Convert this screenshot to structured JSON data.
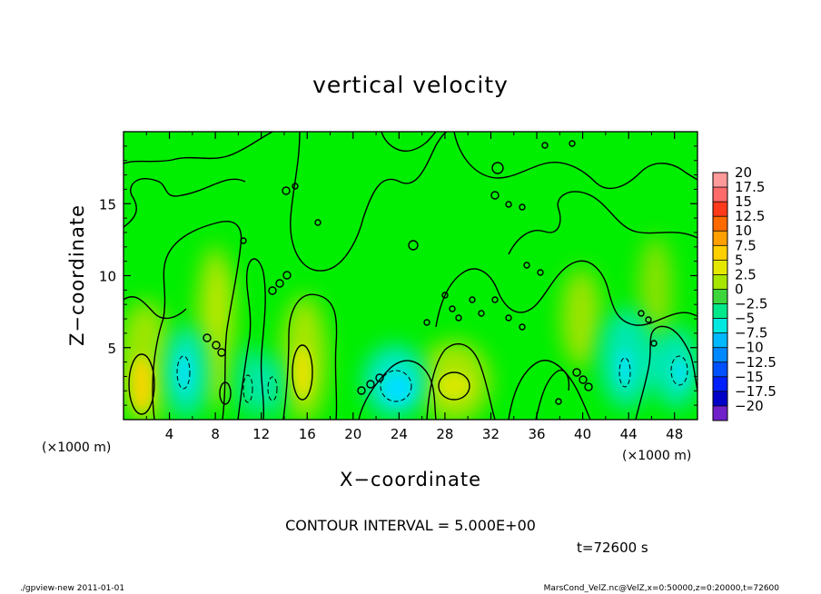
{
  "chart_data": {
    "type": "heatmap",
    "title": "vertical velocity",
    "xlabel": "X−coordinate",
    "ylabel": "Z−coordinate",
    "x_unit_label": "(×1000 m)",
    "y_unit_label": "(×1000 m)",
    "xlim": [
      0,
      50
    ],
    "ylim": [
      0,
      20
    ],
    "x_ticks": [
      4,
      8,
      12,
      16,
      20,
      24,
      28,
      32,
      36,
      40,
      44,
      48
    ],
    "x_tick_labels": [
      "4",
      "8",
      "12",
      "16",
      "20",
      "24",
      "28",
      "32",
      "36",
      "40",
      "44",
      "48"
    ],
    "y_ticks": [
      5,
      10,
      15
    ],
    "y_tick_labels": [
      "5",
      "10",
      "15"
    ],
    "color_range": [
      -20,
      20
    ],
    "colorbar": {
      "labels": [
        "20",
        "17.5",
        "15",
        "12.5",
        "10",
        "7.5",
        "5",
        "2.5",
        "0",
        "−2.5",
        "−5",
        "−7.5",
        "−10",
        "−12.5",
        "−15",
        "−17.5",
        "−20"
      ],
      "colors": [
        "#ff9a9a",
        "#ff6a6a",
        "#ff3a1a",
        "#ff6a00",
        "#ffa000",
        "#ffd000",
        "#e4e800",
        "#a6e600",
        "#3cd63c",
        "#00e88a",
        "#00e8e0",
        "#00b8ff",
        "#0088ff",
        "#0050ff",
        "#0020ff",
        "#0000c8",
        "#7020c8"
      ],
      "background_color": "#00ee00"
    },
    "features": [
      {
        "type": "updraft",
        "x": 1.5,
        "z": 2.5,
        "value": 10
      },
      {
        "type": "downdraft",
        "x": 5.2,
        "z": 3.0,
        "value": -5
      },
      {
        "type": "updraft",
        "x": 9.2,
        "z": 2.0,
        "value": 3
      },
      {
        "type": "downdraft",
        "x": 11.2,
        "z": 2.0,
        "value": -4
      },
      {
        "type": "updraft",
        "x": 15.6,
        "z": 3.2,
        "value": 9
      },
      {
        "type": "downdraft",
        "x": 23.6,
        "z": 2.2,
        "value": -7
      },
      {
        "type": "updraft",
        "x": 28.8,
        "z": 2.4,
        "value": 7
      },
      {
        "type": "downdraft",
        "x": 43.5,
        "z": 3.0,
        "value": -6
      },
      {
        "type": "downdraft",
        "x": 47.8,
        "z": 3.0,
        "value": -6
      }
    ]
  },
  "contour_interval_text": "CONTOUR INTERVAL = 5.000E+00",
  "time_text": "t=72600 s",
  "footer": {
    "left": "./gpview-new   2011-01-01",
    "right": "MarsCond_VelZ.nc@VelZ,x=0:50000,z=0:20000,t=72600"
  }
}
